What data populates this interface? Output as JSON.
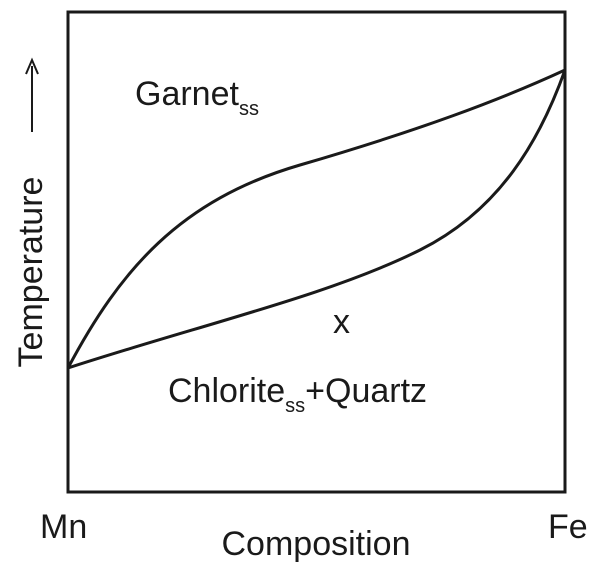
{
  "diagram": {
    "regions": {
      "upper": {
        "name": "Garnet",
        "subscript": "ss"
      },
      "lower": {
        "name": "Chlorite",
        "subscript": "ss",
        "suffix": "+Quartz"
      },
      "point": "x"
    },
    "x_axis": {
      "label": "Composition",
      "left": "Mn",
      "right": "Fe"
    },
    "y_axis": {
      "label": "Temperature"
    }
  }
}
